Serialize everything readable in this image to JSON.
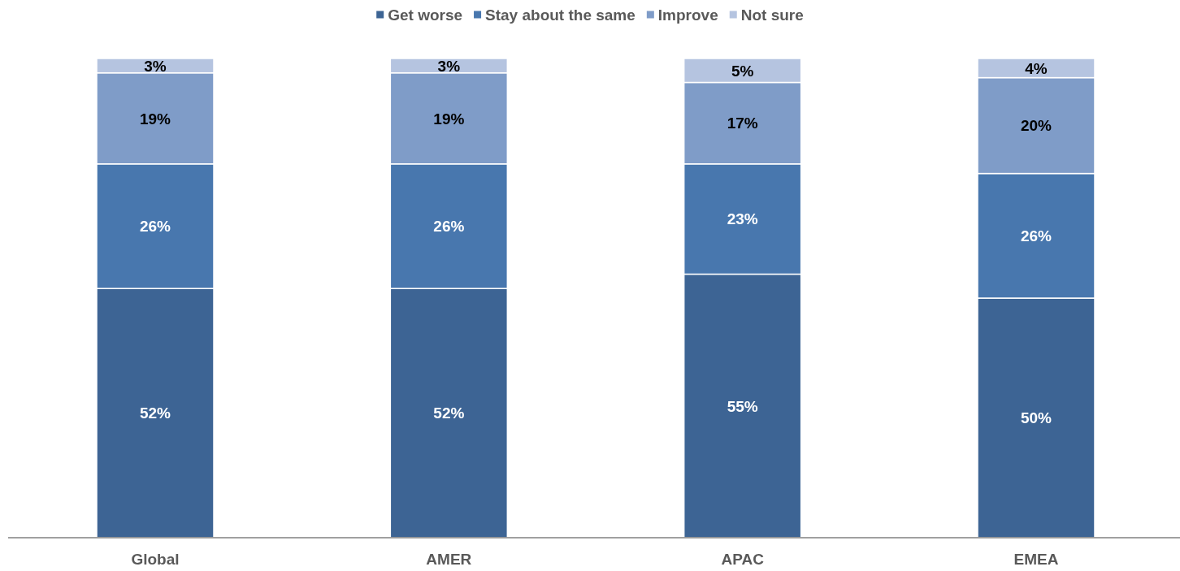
{
  "chart_data": {
    "type": "bar",
    "stacked": true,
    "legend": "top",
    "categories": [
      "Global",
      "AMER",
      "APAC",
      "EMEA"
    ],
    "series": [
      {
        "name": "Get worse",
        "color": "#3d6494",
        "values": [
          52,
          52,
          55,
          50
        ],
        "value_labels": [
          "52%",
          "52%",
          "55%",
          "50%"
        ]
      },
      {
        "name": "Stay about the same",
        "color": "#4877ae",
        "values": [
          26,
          26,
          23,
          26
        ],
        "value_labels": [
          "26%",
          "26%",
          "23%",
          "26%"
        ]
      },
      {
        "name": "Improve",
        "color": "#7f9cc8",
        "values": [
          19,
          19,
          17,
          20
        ],
        "value_labels": [
          "19%",
          "19%",
          "17%",
          "20%"
        ]
      },
      {
        "name": "Not sure",
        "color": "#b5c4e0",
        "values": [
          3,
          3,
          5,
          4
        ],
        "value_labels": [
          "3%",
          "3%",
          "5%",
          "4%"
        ]
      }
    ]
  }
}
